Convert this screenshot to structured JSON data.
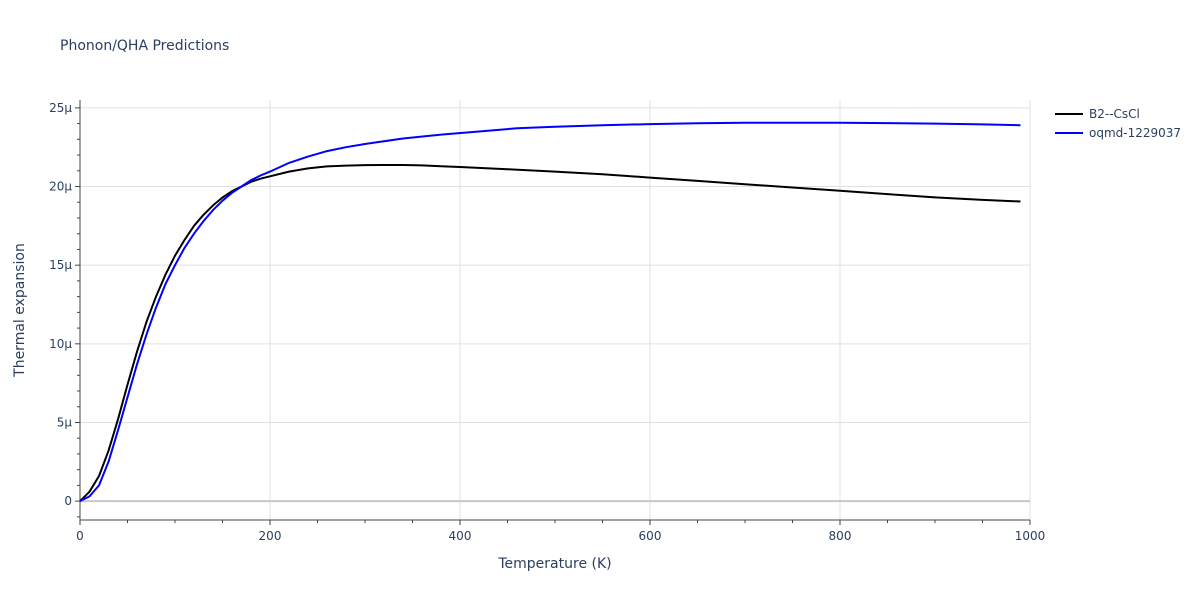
{
  "chart_data": {
    "type": "line",
    "title": "Phonon/QHA Predictions",
    "xlabel": "Temperature (K)",
    "ylabel": "Thermal expansion",
    "xlim": [
      0,
      1000
    ],
    "ylim": [
      -1.2,
      25.5
    ],
    "y_unit_scale": "micro",
    "x_ticks": [
      0,
      200,
      400,
      600,
      800,
      1000
    ],
    "x_tick_labels": [
      "0",
      "200",
      "400",
      "600",
      "800",
      "1000"
    ],
    "y_ticks": [
      0,
      5,
      10,
      15,
      20,
      25
    ],
    "y_tick_labels": [
      "0",
      "5µ",
      "10µ",
      "15µ",
      "20µ",
      "25µ"
    ],
    "grid": true,
    "legend_position": "top-right",
    "series": [
      {
        "name": "B2--CsCl",
        "color": "#000000",
        "x": [
          0,
          10,
          20,
          30,
          40,
          50,
          60,
          70,
          80,
          90,
          100,
          110,
          120,
          130,
          140,
          150,
          160,
          170,
          180,
          190,
          200,
          220,
          240,
          260,
          280,
          300,
          320,
          340,
          360,
          380,
          400,
          450,
          500,
          550,
          600,
          650,
          700,
          750,
          800,
          850,
          900,
          950,
          990
        ],
        "y": [
          0,
          0.6,
          1.6,
          3.2,
          5.2,
          7.4,
          9.5,
          11.4,
          13.0,
          14.4,
          15.6,
          16.6,
          17.5,
          18.2,
          18.8,
          19.3,
          19.7,
          20.0,
          20.3,
          20.5,
          20.65,
          20.95,
          21.15,
          21.28,
          21.33,
          21.36,
          21.37,
          21.37,
          21.34,
          21.29,
          21.24,
          21.1,
          20.95,
          20.78,
          20.57,
          20.36,
          20.15,
          19.94,
          19.73,
          19.52,
          19.31,
          19.15,
          19.05
        ]
      },
      {
        "name": "oqmd-1229037",
        "color": "#0000ff",
        "x": [
          0,
          10,
          20,
          30,
          40,
          50,
          60,
          70,
          80,
          90,
          100,
          110,
          120,
          130,
          140,
          150,
          160,
          170,
          180,
          190,
          200,
          220,
          240,
          260,
          280,
          300,
          340,
          380,
          420,
          460,
          500,
          550,
          600,
          650,
          700,
          750,
          800,
          850,
          900,
          950,
          990
        ],
        "y": [
          0,
          0.3,
          1.0,
          2.5,
          4.5,
          6.6,
          8.7,
          10.6,
          12.3,
          13.8,
          15.0,
          16.1,
          17.0,
          17.8,
          18.5,
          19.1,
          19.6,
          20.0,
          20.4,
          20.7,
          20.95,
          21.5,
          21.9,
          22.25,
          22.5,
          22.7,
          23.05,
          23.3,
          23.5,
          23.7,
          23.8,
          23.9,
          23.97,
          24.02,
          24.05,
          24.06,
          24.05,
          24.03,
          24.0,
          23.95,
          23.9
        ]
      }
    ]
  }
}
